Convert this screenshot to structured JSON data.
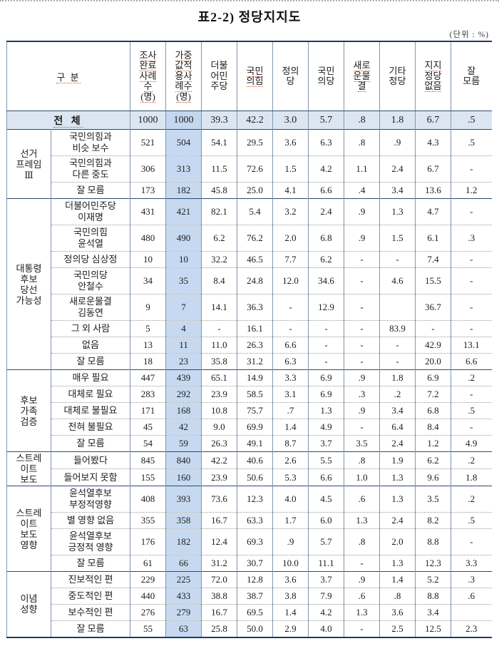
{
  "page": {
    "title": "표2-2)  정당지지도",
    "unit_note": "(단위 : %)"
  },
  "colors": {
    "border_dark": "#1f3a5f",
    "border_light": "#8196ad",
    "total_row_bg": "#dce6f2",
    "weighted_col_bg": "#c6d9f0",
    "spellcheck_underline": "#cf5533"
  },
  "table": {
    "corner_header": {
      "text": "구 분",
      "squiggle": true
    },
    "columns": [
      {
        "name": "surveyed-cases",
        "label": "조사완료사례수(명)",
        "lines": [
          "조사",
          "완료",
          "사례",
          "수",
          "(명)"
        ],
        "squiggle": true,
        "highlight": false
      },
      {
        "name": "weighted-cases",
        "label": "가중값적용사례수(명)",
        "lines": [
          "가중",
          "값적",
          "용사",
          "례수",
          "(명)"
        ],
        "squiggle": true,
        "highlight": true
      },
      {
        "name": "minjoo",
        "label": "더불어민주당",
        "lines": [
          "더불",
          "어민",
          "주당"
        ],
        "squiggle": false,
        "highlight": false
      },
      {
        "name": "people-power",
        "label": "국민의힘",
        "lines": [
          "국민",
          "의힘"
        ],
        "squiggle": true,
        "highlight": false
      },
      {
        "name": "justice",
        "label": "정의당",
        "lines": [
          "정의",
          "당"
        ],
        "squiggle": false,
        "highlight": false
      },
      {
        "name": "peoples-party",
        "label": "국민의당",
        "lines": [
          "국민",
          "의당"
        ],
        "squiggle": false,
        "highlight": false
      },
      {
        "name": "new-wave",
        "label": "새로운물결",
        "lines": [
          "새로",
          "운물",
          "결"
        ],
        "squiggle": true,
        "highlight": false
      },
      {
        "name": "other-party",
        "label": "기타정당",
        "lines": [
          "기타",
          "정당"
        ],
        "squiggle": false,
        "highlight": false
      },
      {
        "name": "no-party",
        "label": "지지정당없음",
        "lines": [
          "지지",
          "정당",
          "없음"
        ],
        "squiggle": true,
        "highlight": false
      },
      {
        "name": "dont-know",
        "label": "잘 모름",
        "lines": [
          "잘",
          "모름"
        ],
        "squiggle": false,
        "highlight": false
      }
    ],
    "total_row": {
      "label": "전 체",
      "squiggle": true,
      "values": [
        "1000",
        "1000",
        "39.3",
        "42.2",
        "3.0",
        "5.7",
        ".8",
        "1.8",
        "6.7",
        ".5"
      ]
    },
    "sections": [
      {
        "group": "선거프레임Ⅲ",
        "group_lines": [
          "선거",
          "프레임",
          "Ⅲ"
        ],
        "rows": [
          {
            "label": "국민의힘과\n비슷 보수",
            "values": [
              "521",
              "504",
              "54.1",
              "29.5",
              "3.6",
              "6.3",
              ".8",
              ".9",
              "4.3",
              ".5"
            ]
          },
          {
            "label": "국민의힘과\n다른 중도",
            "values": [
              "306",
              "313",
              "11.5",
              "72.6",
              "1.5",
              "4.2",
              "1.1",
              "2.4",
              "6.7",
              "-"
            ]
          },
          {
            "label": "잘 모름",
            "values": [
              "173",
              "182",
              "45.8",
              "25.0",
              "4.1",
              "6.6",
              ".4",
              "3.4",
              "13.6",
              "1.2"
            ]
          }
        ]
      },
      {
        "group": "대통령후보당선가능성",
        "group_lines": [
          "대통령",
          "후보",
          "당선",
          "가능성"
        ],
        "rows": [
          {
            "label": "더불어민주당\n이재명",
            "values": [
              "431",
              "421",
              "82.1",
              "5.4",
              "3.2",
              "2.4",
              ".9",
              "1.3",
              "4.7",
              "-"
            ]
          },
          {
            "label": "국민의힘\n윤석열",
            "values": [
              "480",
              "490",
              "6.2",
              "76.2",
              "2.0",
              "6.8",
              ".9",
              "1.5",
              "6.1",
              ".3"
            ]
          },
          {
            "label": "정의당 심상정",
            "values": [
              "10",
              "10",
              "32.2",
              "46.5",
              "7.7",
              "6.2",
              "-",
              "-",
              "7.4",
              "-"
            ]
          },
          {
            "label": "국민의당\n안철수",
            "values": [
              "34",
              "35",
              "8.4",
              "24.8",
              "12.0",
              "34.6",
              "-",
              "4.6",
              "15.5",
              "-"
            ]
          },
          {
            "label": "새로운물결\n김동연",
            "values": [
              "9",
              "7",
              "14.1",
              "36.3",
              "-",
              "12.9",
              "-",
              "",
              "36.7",
              "-"
            ]
          },
          {
            "label": "그 외 사람",
            "values": [
              "5",
              "4",
              "-",
              "16.1",
              "-",
              "-",
              "-",
              "83.9",
              "-",
              "-"
            ]
          },
          {
            "label": "없음",
            "values": [
              "13",
              "11",
              "11.0",
              "26.3",
              "6.6",
              "-",
              "-",
              "-",
              "42.9",
              "13.1"
            ]
          },
          {
            "label": "잘 모름",
            "values": [
              "18",
              "23",
              "35.8",
              "31.2",
              "6.3",
              "-",
              "-",
              "-",
              "20.0",
              "6.6"
            ]
          }
        ]
      },
      {
        "group": "후보가족검증",
        "group_lines": [
          "후보",
          "가족",
          "검증"
        ],
        "rows": [
          {
            "label": "매우 필요",
            "values": [
              "447",
              "439",
              "65.1",
              "14.9",
              "3.3",
              "6.9",
              ".9",
              "1.8",
              "6.9",
              ".2"
            ]
          },
          {
            "label": "대체로 필요",
            "values": [
              "283",
              "292",
              "23.9",
              "58.5",
              "3.1",
              "6.9",
              ".3",
              ".2",
              "7.2",
              "-"
            ]
          },
          {
            "label": "대체로 불필요",
            "values": [
              "171",
              "168",
              "10.8",
              "75.7",
              ".7",
              "1.3",
              ".9",
              "3.4",
              "6.8",
              ".5"
            ]
          },
          {
            "label": "전혀 불필요",
            "values": [
              "45",
              "42",
              "9.0",
              "69.9",
              "1.4",
              "4.9",
              "-",
              "6.4",
              "8.4",
              "-"
            ]
          },
          {
            "label": "잘 모름",
            "values": [
              "54",
              "59",
              "26.3",
              "49.1",
              "8.7",
              "3.7",
              "3.5",
              "2.4",
              "1.2",
              "4.9"
            ]
          }
        ]
      },
      {
        "group": "스트레이트보도",
        "group_lines": [
          "스트레",
          "이트",
          "보도"
        ],
        "rows": [
          {
            "label": "들어봤다",
            "values": [
              "845",
              "840",
              "42.2",
              "40.6",
              "2.6",
              "5.5",
              ".8",
              "1.9",
              "6.2",
              ".2"
            ]
          },
          {
            "label": "들어보지 못함",
            "values": [
              "155",
              "160",
              "23.9",
              "50.6",
              "5.3",
              "6.6",
              "1.0",
              "1.3",
              "9.6",
              "1.8"
            ]
          }
        ]
      },
      {
        "group": "스트레이트보도영향",
        "group_lines": [
          "스트레",
          "이트",
          "보도",
          "영향"
        ],
        "rows": [
          {
            "label": "윤석열후보\n부정적영향",
            "values": [
              "408",
              "393",
              "73.6",
              "12.3",
              "4.0",
              "4.5",
              ".6",
              "1.3",
              "3.5",
              ".2"
            ]
          },
          {
            "label": "별 영향 없음",
            "values": [
              "355",
              "358",
              "16.7",
              "63.3",
              "1.7",
              "6.0",
              "1.3",
              "2.4",
              "8.2",
              ".5"
            ]
          },
          {
            "label": "윤석열후보\n긍정적 영향",
            "values": [
              "176",
              "182",
              "12.4",
              "69.3",
              ".9",
              "5.7",
              ".8",
              "2.0",
              "8.8",
              "-"
            ]
          },
          {
            "label": "잘 모름",
            "values": [
              "61",
              "66",
              "31.2",
              "30.7",
              "10.0",
              "11.1",
              "-",
              "1.3",
              "12.3",
              "3.3"
            ]
          }
        ]
      },
      {
        "group": "이념성향",
        "group_lines": [
          "이념",
          "성향"
        ],
        "rows": [
          {
            "label": "진보적인 편",
            "values": [
              "229",
              "225",
              "72.0",
              "12.8",
              "3.6",
              "3.7",
              ".9",
              "1.4",
              "5.2",
              ".3"
            ]
          },
          {
            "label": "중도적인 편",
            "values": [
              "440",
              "433",
              "38.8",
              "38.7",
              "3.8",
              "7.9",
              ".6",
              ".8",
              "8.8",
              ".6"
            ]
          },
          {
            "label": "보수적인 편",
            "values": [
              "276",
              "279",
              "16.7",
              "69.5",
              "1.4",
              "4.2",
              "1.3",
              "3.6",
              "3.4",
              ""
            ]
          },
          {
            "label": "잘 모름",
            "values": [
              "55",
              "63",
              "25.8",
              "50.0",
              "2.9",
              "4.0",
              "-",
              "2.5",
              "12.5",
              "2.3"
            ]
          }
        ]
      }
    ]
  }
}
